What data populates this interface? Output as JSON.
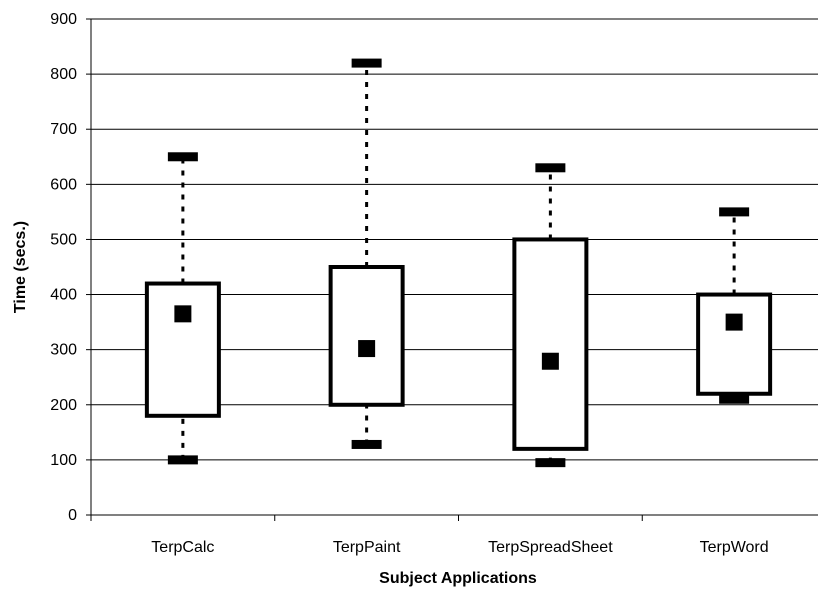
{
  "chart_data": {
    "type": "box",
    "title": "",
    "xlabel": "Subject Applications",
    "ylabel": "Time (secs.)",
    "ylim": [
      0,
      900
    ],
    "yticks": [
      0,
      100,
      200,
      300,
      400,
      500,
      600,
      700,
      800,
      900
    ],
    "grid": true,
    "legend": "none",
    "categories": [
      "TerpCalc",
      "TerpPaint",
      "TerpSpreadSheet",
      "TerpWord"
    ],
    "series": [
      {
        "min": 100,
        "q1": 180,
        "mean": 365,
        "q3": 420,
        "max": 650
      },
      {
        "min": 128,
        "q1": 200,
        "mean": 302,
        "q3": 450,
        "max": 820
      },
      {
        "min": 95,
        "q1": 120,
        "mean": 279,
        "q3": 500,
        "max": 630
      },
      {
        "min": 210,
        "q1": 220,
        "mean": 350,
        "q3": 400,
        "max": 550
      }
    ],
    "colors": {
      "stroke": "#000000",
      "fill": "#ffffff",
      "grid": "#000000"
    }
  }
}
